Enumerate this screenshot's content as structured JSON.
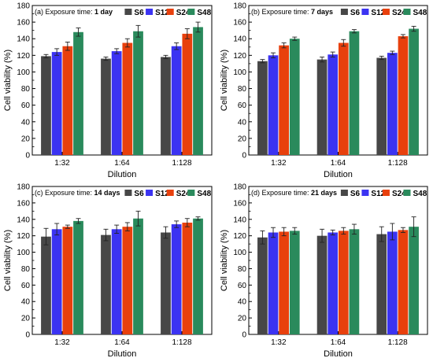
{
  "series_colors": [
    "#474747",
    "#3b33f2",
    "#e8400d",
    "#2a8a5c"
  ],
  "chart_data": [
    {
      "type": "bar",
      "panel_title": {
        "prefix": "(a) Exposure time: ",
        "emph": "1 day"
      },
      "xlabel": "Dilution",
      "ylabel": "Cell viability (%)",
      "ylim": [
        0,
        180
      ],
      "yticks": [
        0,
        20,
        40,
        60,
        80,
        100,
        120,
        140,
        160,
        180
      ],
      "categories": [
        "1:32",
        "1:64",
        "1:128"
      ],
      "legend_position": "top-right",
      "grid": false,
      "series": [
        {
          "name": "S6",
          "values": [
            119,
            116,
            118
          ],
          "errors": [
            2,
            2,
            2
          ]
        },
        {
          "name": "S12",
          "values": [
            124,
            125,
            131
          ],
          "errors": [
            4,
            3,
            4
          ]
        },
        {
          "name": "S24",
          "values": [
            131,
            135,
            146
          ],
          "errors": [
            5,
            5,
            6
          ]
        },
        {
          "name": "S48",
          "values": [
            148,
            149,
            154
          ],
          "errors": [
            5,
            7,
            6
          ]
        }
      ]
    },
    {
      "type": "bar",
      "panel_title": {
        "prefix": "(b) Exposure time: ",
        "emph": "7 days"
      },
      "xlabel": "Dilution",
      "ylabel": "Cell viability (%)",
      "ylim": [
        0,
        180
      ],
      "yticks": [
        0,
        20,
        40,
        60,
        80,
        100,
        120,
        140,
        160,
        180
      ],
      "categories": [
        "1:32",
        "1:64",
        "1:128"
      ],
      "legend_position": "top-right",
      "grid": false,
      "series": [
        {
          "name": "S6",
          "values": [
            113,
            115,
            117
          ],
          "errors": [
            2,
            3,
            2
          ]
        },
        {
          "name": "S12",
          "values": [
            120,
            121,
            123
          ],
          "errors": [
            3,
            3,
            2
          ]
        },
        {
          "name": "S24",
          "values": [
            132,
            135,
            143
          ],
          "errors": [
            3,
            4,
            2
          ]
        },
        {
          "name": "S48",
          "values": [
            140,
            149,
            152
          ],
          "errors": [
            2,
            2,
            3
          ]
        }
      ]
    },
    {
      "type": "bar",
      "panel_title": {
        "prefix": "(c) Exposure time: ",
        "emph": "14 days"
      },
      "xlabel": "Dilution",
      "ylabel": "Cell viability (%)",
      "ylim": [
        0,
        180
      ],
      "yticks": [
        0,
        20,
        40,
        60,
        80,
        100,
        120,
        140,
        160,
        180
      ],
      "categories": [
        "1:32",
        "1:64",
        "1:128"
      ],
      "legend_position": "top-right",
      "grid": false,
      "series": [
        {
          "name": "S6",
          "values": [
            119,
            121,
            124
          ],
          "errors": [
            10,
            7,
            7
          ]
        },
        {
          "name": "S12",
          "values": [
            128,
            128,
            134
          ],
          "errors": [
            7,
            5,
            4
          ]
        },
        {
          "name": "S24",
          "values": [
            131,
            131,
            136
          ],
          "errors": [
            2,
            5,
            5
          ]
        },
        {
          "name": "S48",
          "values": [
            138,
            141,
            141
          ],
          "errors": [
            3,
            9,
            2
          ]
        }
      ]
    },
    {
      "type": "bar",
      "panel_title": {
        "prefix": "(d) Exposure time: ",
        "emph": "21 days"
      },
      "xlabel": "Dilution",
      "ylabel": "Cell viability (%)",
      "ylim": [
        0,
        180
      ],
      "yticks": [
        0,
        20,
        40,
        60,
        80,
        100,
        120,
        140,
        160,
        180
      ],
      "categories": [
        "1:32",
        "1:64",
        "1:128"
      ],
      "legend_position": "top-right",
      "grid": false,
      "series": [
        {
          "name": "S6",
          "values": [
            118,
            120,
            122
          ],
          "errors": [
            8,
            8,
            9
          ]
        },
        {
          "name": "S12",
          "values": [
            124,
            124,
            125
          ],
          "errors": [
            6,
            3,
            10
          ]
        },
        {
          "name": "S24",
          "values": [
            125,
            126,
            127
          ],
          "errors": [
            5,
            4,
            3
          ]
        },
        {
          "name": "S48",
          "values": [
            126,
            128,
            131
          ],
          "errors": [
            4,
            6,
            12
          ]
        }
      ]
    }
  ]
}
